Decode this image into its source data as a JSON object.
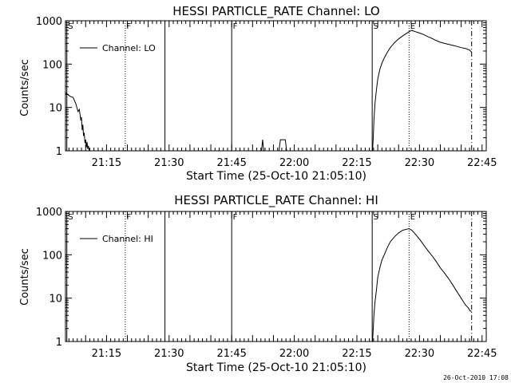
{
  "footer": {
    "timestamp": "26-Oct-2010 17:08"
  },
  "chart_data": [
    {
      "type": "line",
      "title": "HESSI PARTICLE_RATE Channel: LO",
      "xlabel": "Start Time (25-Oct-10 21:05:10)",
      "ylabel": "Counts/sec",
      "yscale": "log",
      "xlim": [
        "21:05:10",
        "22:46:00"
      ],
      "ylim": [
        1,
        1000
      ],
      "x_tick_labels": [
        "21:15",
        "21:30",
        "21:45",
        "22:00",
        "22:15",
        "22:30",
        "22:45"
      ],
      "y_tick_labels": [
        "1",
        "10",
        "100",
        "1000"
      ],
      "legend": {
        "position": "top-left",
        "entries": [
          "Channel: LO"
        ]
      },
      "markers": [
        {
          "label": "S",
          "time": "21:05:30",
          "style": "solid"
        },
        {
          "label": "F",
          "time": "21:19:30",
          "style": "dotted"
        },
        {
          "label": "",
          "time": "21:29:00",
          "style": "solid"
        },
        {
          "label": "F",
          "time": "21:45:00",
          "style": "solid"
        },
        {
          "label": "S",
          "time": "22:18:40",
          "style": "solid"
        },
        {
          "label": "E",
          "time": "22:27:30",
          "style": "dotted"
        },
        {
          "label": "",
          "time": "22:42:30",
          "style": "dashdot"
        }
      ],
      "series": [
        {
          "name": "Channel: LO",
          "segments": [
            {
              "x": [
                "21:05:10",
                "21:05:40",
                "21:06:20",
                "21:07:00",
                "21:07:40",
                "21:08:10",
                "21:08:30",
                "21:08:50",
                "21:09:00",
                "21:09:10",
                "21:09:20",
                "21:09:30",
                "21:09:40",
                "21:09:50",
                "21:10:00",
                "21:10:10",
                "21:10:20",
                "21:10:30",
                "21:10:40",
                "21:10:50",
                "21:11:00"
              ],
              "y": [
                22,
                20,
                18,
                17,
                12,
                8,
                9,
                5,
                6,
                3,
                4,
                2.2,
                2.6,
                1.5,
                1.8,
                1.2,
                1.6,
                1.1,
                1.3,
                1.05,
                1
              ]
            },
            {
              "x": [
                "21:52:10",
                "21:52:25",
                "21:52:40"
              ],
              "y": [
                1,
                1.8,
                1
              ]
            },
            {
              "x": [
                "21:56:20",
                "21:56:40",
                "21:57:50",
                "21:58:10"
              ],
              "y": [
                1,
                1.8,
                1.8,
                1
              ]
            },
            {
              "x": [
                "22:18:45",
                "22:18:55",
                "22:19:05",
                "22:19:20",
                "22:19:40",
                "22:20:00",
                "22:20:30",
                "22:21:00",
                "22:21:40",
                "22:22:20",
                "22:23:00",
                "22:24:00",
                "22:25:00",
                "22:26:00",
                "22:27:00",
                "22:27:30",
                "22:28:10",
                "22:29:00",
                "22:30:00",
                "22:31:00",
                "22:32:00",
                "22:33:00",
                "22:34:00",
                "22:35:00",
                "22:36:00",
                "22:37:00",
                "22:38:00",
                "22:39:00",
                "22:40:00",
                "22:41:00",
                "22:42:00",
                "22:42:30"
              ],
              "y": [
                1,
                2,
                5,
                12,
                25,
                45,
                75,
                105,
                145,
                190,
                240,
                310,
                380,
                450,
                520,
                560,
                600,
                560,
                520,
                480,
                430,
                390,
                350,
                320,
                300,
                285,
                270,
                255,
                240,
                230,
                210,
                190
              ]
            }
          ]
        }
      ]
    },
    {
      "type": "line",
      "title": "HESSI PARTICLE_RATE Channel: HI",
      "xlabel": "Start Time (25-Oct-10 21:05:10)",
      "ylabel": "Counts/sec",
      "yscale": "log",
      "xlim": [
        "21:05:10",
        "22:46:00"
      ],
      "ylim": [
        1,
        1000
      ],
      "x_tick_labels": [
        "21:15",
        "21:30",
        "21:45",
        "22:00",
        "22:15",
        "22:30",
        "22:45"
      ],
      "y_tick_labels": [
        "1",
        "10",
        "100",
        "1000"
      ],
      "legend": {
        "position": "top-left",
        "entries": [
          "Channel: HI"
        ]
      },
      "markers": [
        {
          "label": "S",
          "time": "21:05:30",
          "style": "solid"
        },
        {
          "label": "F",
          "time": "21:19:30",
          "style": "dotted"
        },
        {
          "label": "",
          "time": "21:29:00",
          "style": "solid"
        },
        {
          "label": "F",
          "time": "21:45:00",
          "style": "solid"
        },
        {
          "label": "S",
          "time": "22:18:40",
          "style": "solid"
        },
        {
          "label": "E",
          "time": "22:27:30",
          "style": "dotted"
        },
        {
          "label": "",
          "time": "22:42:30",
          "style": "dashdot"
        }
      ],
      "series": [
        {
          "name": "Channel: HI",
          "segments": [
            {
              "x": [
                "22:18:45",
                "22:18:55",
                "22:19:05",
                "22:19:20",
                "22:19:40",
                "22:20:00",
                "22:20:30",
                "22:21:00",
                "22:21:40",
                "22:22:20",
                "22:23:00",
                "22:24:00",
                "22:25:00",
                "22:26:00",
                "22:27:00",
                "22:27:30",
                "22:28:10",
                "22:29:00",
                "22:30:00",
                "22:31:00",
                "22:32:00",
                "22:33:00",
                "22:34:00",
                "22:35:00",
                "22:36:00",
                "22:37:00",
                "22:38:00",
                "22:39:00",
                "22:40:00",
                "22:41:00",
                "22:41:40",
                "22:42:10",
                "22:42:30"
              ],
              "y": [
                1,
                2,
                4,
                8,
                15,
                30,
                50,
                75,
                105,
                150,
                200,
                260,
                320,
                370,
                390,
                400,
                370,
                300,
                230,
                170,
                125,
                95,
                70,
                50,
                38,
                28,
                20,
                14,
                10,
                7,
                6,
                5,
                5
              ]
            }
          ]
        }
      ]
    }
  ]
}
